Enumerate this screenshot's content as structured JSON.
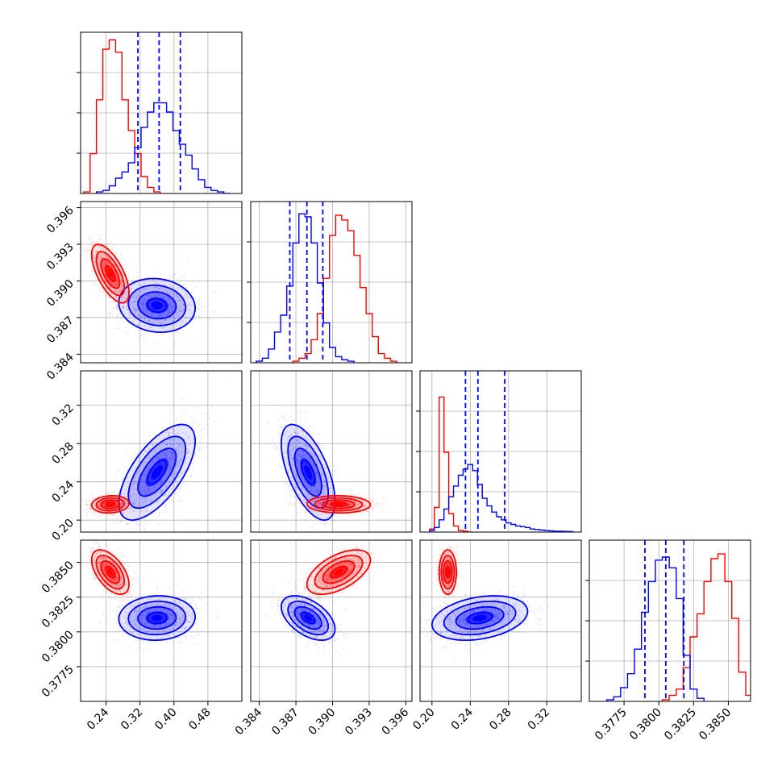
{
  "chart_data": {
    "type": "corner",
    "series": [
      {
        "name": "",
        "color": "#ff0000",
        "style": "red"
      },
      {
        "name": "",
        "color": "#0000ff",
        "style": "blue",
        "quantiles_shown": true
      }
    ],
    "parameters": [
      {
        "ticks": [
          0.24,
          0.32,
          0.4,
          0.48
        ],
        "tick_labels": [
          "0.24",
          "0.32",
          "0.40",
          "0.48"
        ],
        "range": [
          0.18,
          0.56
        ],
        "red": {
          "bins": [
            0.195,
            0.21,
            0.225,
            0.24,
            0.255,
            0.27,
            0.285,
            0.3,
            0.315,
            0.33,
            0.345,
            0.36
          ],
          "counts": [
            0.01,
            0.26,
            0.61,
            0.94,
            1.0,
            0.92,
            0.61,
            0.41,
            0.26,
            0.11,
            0.04,
            0.01
          ]
        },
        "blue": {
          "bins": [
            0.225,
            0.24,
            0.255,
            0.27,
            0.285,
            0.3,
            0.315,
            0.33,
            0.345,
            0.36,
            0.375,
            0.39,
            0.405,
            0.42,
            0.435,
            0.45,
            0.465,
            0.48,
            0.495,
            0.51,
            0.525
          ],
          "counts": [
            0.01,
            0.02,
            0.05,
            0.1,
            0.14,
            0.2,
            0.3,
            0.43,
            0.53,
            0.59,
            0.59,
            0.53,
            0.41,
            0.32,
            0.25,
            0.16,
            0.09,
            0.04,
            0.02,
            0.01,
            0.0
          ]
        },
        "blue_quantiles": [
          0.315,
          0.365,
          0.415
        ]
      },
      {
        "ticks": [
          0.384,
          0.387,
          0.39,
          0.393,
          0.396
        ],
        "tick_labels": [
          "0.384",
          "0.387",
          "0.390",
          "0.393",
          "0.396"
        ],
        "range": [
          0.3833,
          0.3965
        ],
        "red": {
          "bins": [
            0.387,
            0.3875,
            0.388,
            0.3885,
            0.389,
            0.3895,
            0.39,
            0.3905,
            0.391,
            0.3915,
            0.392,
            0.3925,
            0.393,
            0.3935,
            0.394,
            0.3945,
            0.395
          ],
          "counts": [
            0.01,
            0.03,
            0.06,
            0.15,
            0.32,
            0.55,
            0.83,
            0.96,
            0.93,
            0.86,
            0.7,
            0.49,
            0.32,
            0.17,
            0.06,
            0.03,
            0.01
          ]
        },
        "blue": {
          "bins": [
            0.384,
            0.3845,
            0.385,
            0.3855,
            0.386,
            0.3865,
            0.387,
            0.3875,
            0.388,
            0.3885,
            0.389,
            0.3895,
            0.39,
            0.3905,
            0.391,
            0.3915
          ],
          "counts": [
            0.01,
            0.03,
            0.09,
            0.2,
            0.31,
            0.5,
            0.78,
            0.97,
            0.95,
            0.78,
            0.52,
            0.26,
            0.1,
            0.04,
            0.02,
            0.01
          ]
        },
        "blue_quantiles": [
          0.3865,
          0.3879,
          0.3892
        ]
      },
      {
        "ticks": [
          0.2,
          0.24,
          0.28,
          0.32
        ],
        "tick_labels": [
          "0.20",
          "0.24",
          "0.28",
          "0.32"
        ],
        "range": [
          0.1875,
          0.356
        ],
        "red": {
          "bins": [
            0.2,
            0.205,
            0.21,
            0.215,
            0.22,
            0.225,
            0.23,
            0.235,
            0.24
          ],
          "counts": [
            0.02,
            0.16,
            0.88,
            0.52,
            0.12,
            0.04,
            0.01,
            0.005,
            0.0
          ]
        },
        "blue": {
          "bins": [
            0.2,
            0.205,
            0.21,
            0.215,
            0.22,
            0.225,
            0.23,
            0.235,
            0.24,
            0.245,
            0.25,
            0.255,
            0.26,
            0.265,
            0.27,
            0.275,
            0.28,
            0.285,
            0.29,
            0.295,
            0.3,
            0.305,
            0.31,
            0.315,
            0.32,
            0.325,
            0.33,
            0.335,
            0.34,
            0.345
          ],
          "counts": [
            0.01,
            0.03,
            0.08,
            0.15,
            0.23,
            0.3,
            0.37,
            0.41,
            0.44,
            0.4,
            0.31,
            0.22,
            0.17,
            0.13,
            0.1,
            0.08,
            0.06,
            0.05,
            0.04,
            0.035,
            0.03,
            0.02,
            0.017,
            0.013,
            0.01,
            0.008,
            0.006,
            0.005,
            0.004,
            0.003
          ]
        },
        "blue_quantiles": [
          0.235,
          0.248,
          0.276
        ]
      },
      {
        "ticks": [
          0.3775,
          0.38,
          0.3825,
          0.385
        ],
        "tick_labels": [
          "0.3775",
          "0.3800",
          "0.3825",
          "0.3850"
        ],
        "range": [
          0.375,
          0.3866
        ],
        "red": {
          "bins": [
            0.3805,
            0.381,
            0.3815,
            0.382,
            0.3825,
            0.383,
            0.3835,
            0.384,
            0.3845,
            0.385,
            0.3855,
            0.386,
            0.3865
          ],
          "counts": [
            0.01,
            0.04,
            0.08,
            0.22,
            0.42,
            0.57,
            0.78,
            0.93,
            0.96,
            0.78,
            0.54,
            0.19,
            0.04
          ]
        },
        "blue": {
          "bins": [
            0.3765,
            0.377,
            0.3775,
            0.378,
            0.3785,
            0.379,
            0.3795,
            0.38,
            0.3805,
            0.381,
            0.3815,
            0.382,
            0.3825,
            0.383
          ],
          "counts": [
            0.01,
            0.03,
            0.09,
            0.18,
            0.34,
            0.58,
            0.78,
            0.92,
            0.94,
            0.87,
            0.67,
            0.3,
            0.08,
            0.02
          ]
        },
        "blue_quantiles": [
          0.379,
          0.3805,
          0.3818
        ]
      }
    ],
    "pairs": [
      {
        "row": 1,
        "col": 0,
        "red": {
          "mean": [
            0.25,
            0.3906
          ],
          "sd": [
            0.022,
            0.0012
          ],
          "rho": -0.65
        },
        "blue": {
          "mean": [
            0.36,
            0.388
          ],
          "sd": [
            0.045,
            0.0011
          ],
          "rho": -0.1
        }
      },
      {
        "row": 2,
        "col": 0,
        "red": {
          "mean": [
            0.25,
            0.2165
          ],
          "sd": [
            0.022,
            0.0045
          ],
          "rho": 0.1
        },
        "blue": {
          "mean": [
            0.36,
            0.25
          ],
          "sd": [
            0.045,
            0.025
          ],
          "rho": 0.65
        }
      },
      {
        "row": 2,
        "col": 1,
        "red": {
          "mean": [
            0.3905,
            0.2165
          ],
          "sd": [
            0.0013,
            0.0045
          ],
          "rho": -0.05
        },
        "blue": {
          "mean": [
            0.388,
            0.25
          ],
          "sd": [
            0.0011,
            0.025
          ],
          "rho": -0.6
        }
      },
      {
        "row": 3,
        "col": 0,
        "red": {
          "mean": [
            0.25,
            0.3843
          ],
          "sd": [
            0.022,
            0.0008
          ],
          "rho": -0.55
        },
        "blue": {
          "mean": [
            0.36,
            0.381
          ],
          "sd": [
            0.045,
            0.0008
          ],
          "rho": 0.05
        }
      },
      {
        "row": 3,
        "col": 1,
        "red": {
          "mean": [
            0.3905,
            0.3843
          ],
          "sd": [
            0.0013,
            0.0008
          ],
          "rho": 0.55
        },
        "blue": {
          "mean": [
            0.388,
            0.381
          ],
          "sd": [
            0.0011,
            0.0008
          ],
          "rho": -0.5
        }
      },
      {
        "row": 3,
        "col": 2,
        "red": {
          "mean": [
            0.2165,
            0.3843
          ],
          "sd": [
            0.0045,
            0.0008
          ],
          "rho": 0.0
        },
        "blue": {
          "mean": [
            0.25,
            0.381
          ],
          "sd": [
            0.025,
            0.0008
          ],
          "rho": 0.3
        }
      }
    ],
    "contour_levels_sigma": [
      0.5,
      1.0,
      1.5,
      2.0
    ],
    "grid": true,
    "legend": "none"
  }
}
